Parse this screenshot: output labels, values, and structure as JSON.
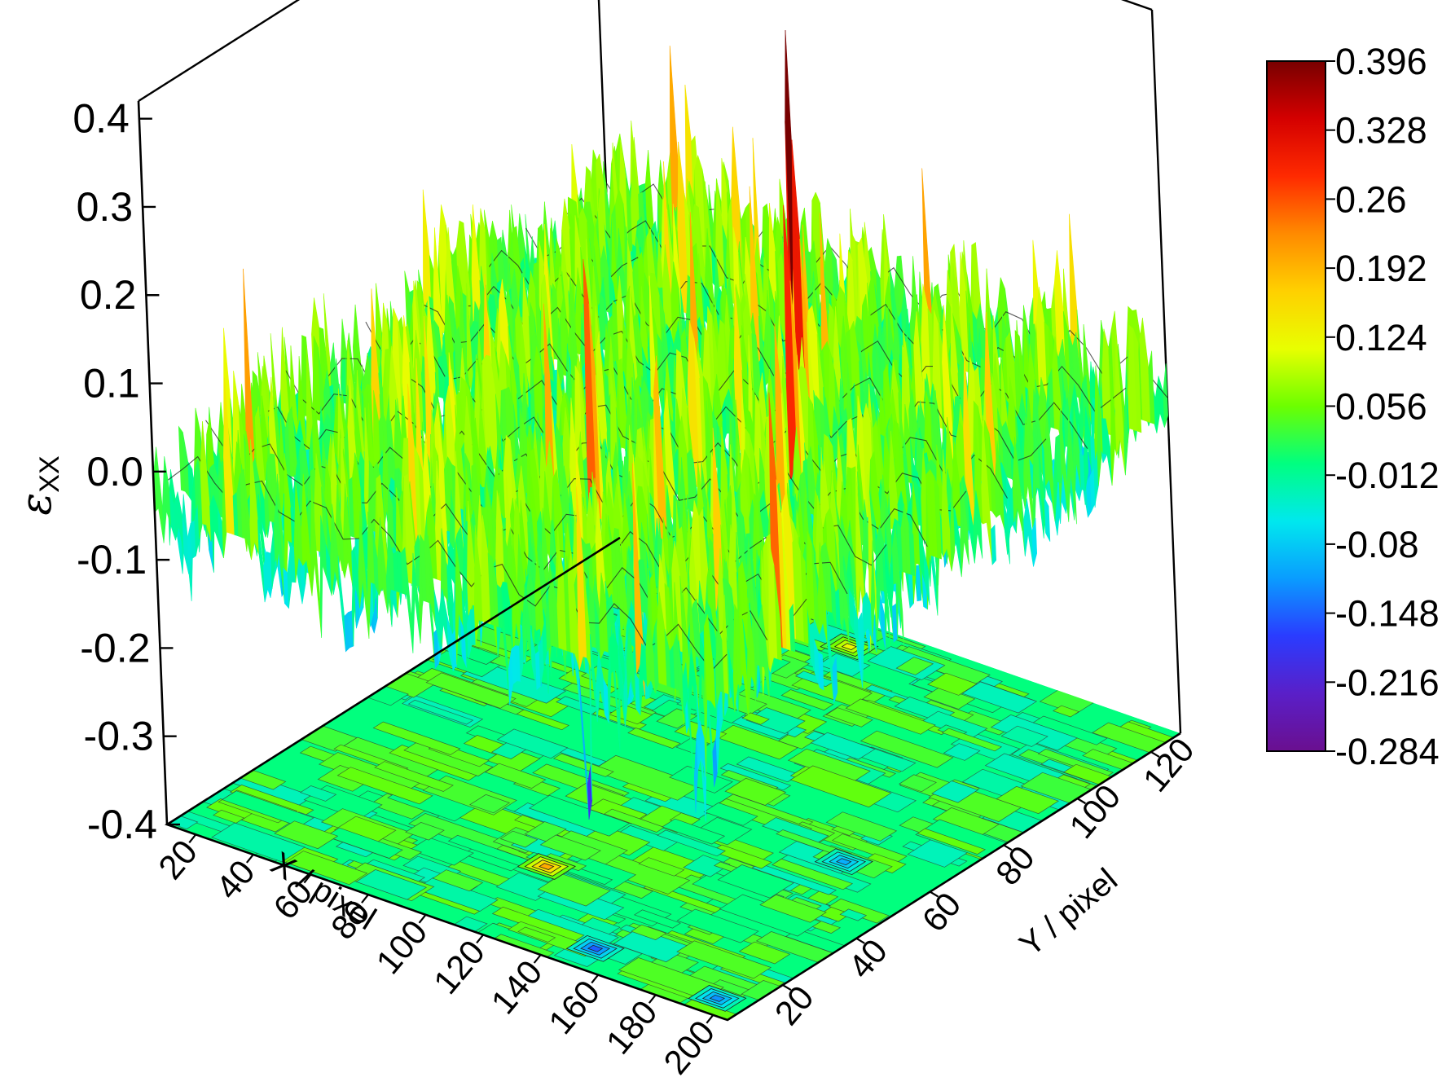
{
  "chart_data": {
    "type": "surface3d",
    "title": "",
    "zlabel_symbol": "ε",
    "zlabel_subscript": "XX",
    "xlabel": "X / pixel",
    "ylabel": "Y / pixel",
    "xlim": [
      10,
      205
    ],
    "ylim": [
      5,
      128
    ],
    "zlim": [
      -0.4,
      0.42
    ],
    "x_ticks": [
      20,
      40,
      60,
      80,
      100,
      120,
      140,
      160,
      180,
      200
    ],
    "y_ticks": [
      20,
      40,
      60,
      80,
      100,
      120
    ],
    "z_ticks": [
      {
        "value": -0.4,
        "label": "-0.4"
      },
      {
        "value": -0.3,
        "label": "-0.3"
      },
      {
        "value": -0.2,
        "label": "-0.2"
      },
      {
        "value": -0.1,
        "label": "-0.1"
      },
      {
        "value": 0.0,
        "label": "0.0"
      },
      {
        "value": 0.1,
        "label": "0.1"
      },
      {
        "value": 0.2,
        "label": "0.2"
      },
      {
        "value": 0.3,
        "label": "0.3"
      },
      {
        "value": 0.4,
        "label": "0.4"
      }
    ],
    "colorbar": {
      "min": -0.284,
      "max": 0.396,
      "labels": [
        "0.396",
        "0.328",
        "0.26",
        "0.192",
        "0.124",
        "0.056",
        "-0.012",
        "-0.08",
        "-0.148",
        "-0.216",
        "-0.284"
      ],
      "colormap": [
        "#6a0f8f",
        "#5a1fc8",
        "#2a3cff",
        "#0a9cff",
        "#00e8ee",
        "#00ff80",
        "#6cff00",
        "#e8ff00",
        "#ffd000",
        "#ff8a00",
        "#ff2a00",
        "#d40000",
        "#780000"
      ]
    },
    "baseline_value": 0.0,
    "peaks": [
      {
        "x": 128,
        "y": 88,
        "z": 0.41
      },
      {
        "x": 134,
        "y": 86,
        "z": 0.4
      },
      {
        "x": 112,
        "y": 45,
        "z": 0.32
      },
      {
        "x": 70,
        "y": 118,
        "z": 0.32
      },
      {
        "x": 40,
        "y": 126,
        "z": 0.22
      },
      {
        "x": 150,
        "y": 70,
        "z": 0.28
      },
      {
        "x": 160,
        "y": 60,
        "z": 0.27
      },
      {
        "x": 185,
        "y": 25,
        "z": 0.2
      },
      {
        "x": 200,
        "y": 28,
        "z": 0.3
      },
      {
        "x": 100,
        "y": 68,
        "z": 0.2
      },
      {
        "x": 175,
        "y": 30,
        "z": 0.15
      },
      {
        "x": 60,
        "y": 110,
        "z": 0.12
      },
      {
        "x": 140,
        "y": 40,
        "z": 0.18
      },
      {
        "x": 125,
        "y": 62,
        "z": 0.16
      }
    ],
    "troughs": [
      {
        "x": 150,
        "y": 12,
        "z": -0.36
      },
      {
        "x": 195,
        "y": 10,
        "z": -0.2
      },
      {
        "x": 110,
        "y": 30,
        "z": -0.22
      },
      {
        "x": 80,
        "y": 60,
        "z": -0.17
      },
      {
        "x": 60,
        "y": 20,
        "z": -0.15
      }
    ]
  }
}
